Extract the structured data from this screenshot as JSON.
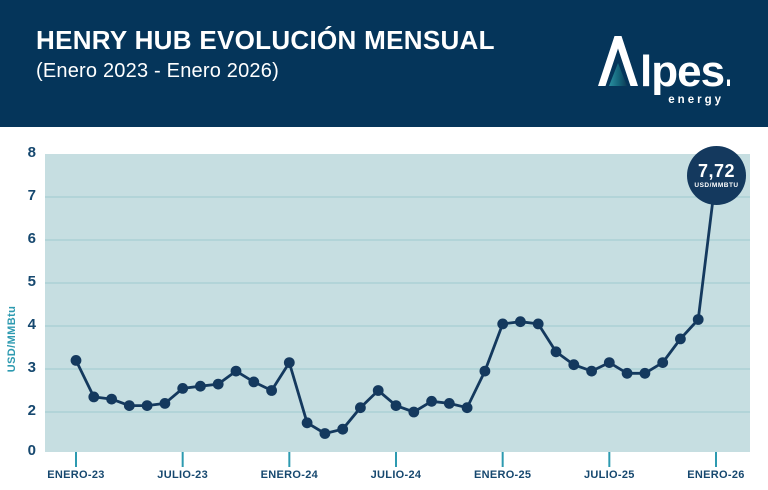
{
  "header": {
    "title": "HENRY HUB EVOLUCIÓN MENSUAL",
    "subtitle": "(Enero 2023 - Enero 2026)"
  },
  "logo": {
    "wordmark": "Alpes.",
    "wordmark_rest": "lpes.",
    "tagline": "energy"
  },
  "chart_data": {
    "type": "line",
    "title": "HENRY HUB EVOLUCIÓN MENSUAL (Enero 2023 - Enero 2026)",
    "ylabel": "USD/MMBtu",
    "y_tick_labels": [
      "8",
      "7",
      "6",
      "5",
      "4",
      "3",
      "2",
      "0"
    ],
    "ylim": [
      0,
      8
    ],
    "grid": true,
    "legend": false,
    "x_tick_labels": [
      "ENERO-23",
      "JULIO-23",
      "ENERO-24",
      "JULIO-24",
      "ENERO-25",
      "JULIO-25",
      "ENERO-26"
    ],
    "x_tick_month_index": [
      0,
      6,
      12,
      18,
      24,
      30,
      36
    ],
    "series_start": "ENERO-23",
    "frequency": "monthly",
    "values": [
      3.2,
      2.35,
      2.3,
      2.15,
      2.15,
      2.2,
      2.55,
      2.6,
      2.65,
      2.95,
      2.7,
      2.5,
      3.15,
      1.75,
      1.5,
      1.6,
      2.1,
      2.5,
      2.15,
      2.0,
      2.25,
      2.2,
      2.1,
      2.95,
      4.05,
      4.1,
      4.05,
      3.4,
      3.1,
      2.95,
      3.15,
      2.9,
      2.9,
      3.15,
      3.7,
      4.15,
      7.72
    ],
    "callout": {
      "value": "7,72",
      "unit": "USD/MMBTU",
      "month_index": 36
    }
  },
  "colors": {
    "header_bg": "#05355a",
    "line": "#14395e",
    "plot_bg": "#c6dee1",
    "gridline": "#a6cdd4",
    "teal": "#2d9ab0",
    "axis_text": "#16486f",
    "white": "#ffffff",
    "logo_accent": "#2a8fa0"
  }
}
